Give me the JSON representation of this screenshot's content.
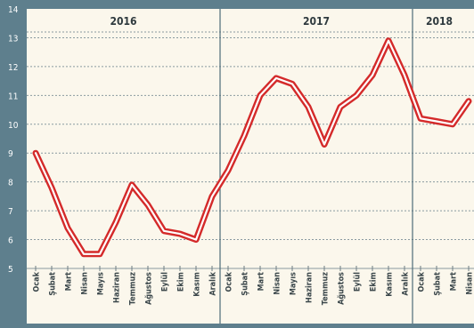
{
  "chart_data": {
    "type": "line",
    "title": "",
    "xlabel": "",
    "ylabel": "",
    "ylim": [
      5,
      14
    ],
    "yticks": [
      5,
      6,
      7,
      8,
      9,
      10,
      11,
      12,
      13,
      14
    ],
    "grid": true,
    "year_groups": [
      {
        "label": "2016",
        "months": 12
      },
      {
        "label": "2017",
        "months": 12
      },
      {
        "label": "2018",
        "months": 4
      }
    ],
    "categories": [
      "Ocak",
      "Şubat",
      "Mart",
      "Nisan",
      "Mayıs",
      "Haziran",
      "Temmuz",
      "Ağustos",
      "Eylül",
      "Ekim",
      "Kasım",
      "Aralık",
      "Ocak",
      "Şubat",
      "Mart",
      "Nisan",
      "Mayıs",
      "Haziran",
      "Temmuz",
      "Ağustos",
      "Eylül",
      "Ekim",
      "Kasım",
      "Aralık",
      "Ocak",
      "Şubat",
      "Mart",
      "Nisan"
    ],
    "series": [
      {
        "values": [
          9.0,
          7.8,
          6.4,
          5.5,
          5.5,
          6.6,
          7.9,
          7.2,
          6.3,
          6.2,
          6.0,
          7.5,
          8.4,
          9.6,
          11.0,
          11.6,
          11.4,
          10.6,
          9.3,
          10.6,
          11.0,
          11.7,
          12.9,
          11.7,
          10.2,
          10.1,
          10.0,
          10.8
        ],
        "color": "#d42a2a"
      }
    ],
    "colors": {
      "background": "#5e7f8d",
      "plot_area": "#fbf7ec",
      "gridline": "#8a9aa0",
      "line_outer": "#d42a2a",
      "line_inner": "#ffffff"
    }
  }
}
